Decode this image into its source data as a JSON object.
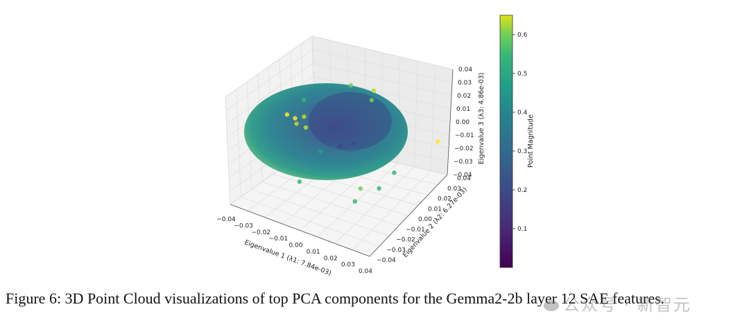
{
  "chart_data": {
    "type": "scatter",
    "projection": "3d",
    "xlabel": "Eigenvalue 1 (λ1: 7.84e-03)",
    "ylabel": "Eigenvalue 2 (λ2: 6.27e-03)",
    "zlabel": "Eigenvalue 3 (λ3: 4.86e-03)",
    "xlim": [
      -0.04,
      0.04
    ],
    "ylim": [
      -0.04,
      0.04
    ],
    "zlim": [
      -0.04,
      0.04
    ],
    "x_ticks": [
      "−0.04",
      "−0.03",
      "−0.02",
      "−0.01",
      "0.00",
      "0.01",
      "0.02",
      "0.03",
      "0.04"
    ],
    "y_ticks": [
      "−0.04",
      "−0.03",
      "−0.02",
      "−0.01",
      "0.00",
      "0.01",
      "0.02",
      "0.03",
      "0.04"
    ],
    "z_ticks": [
      "−0.04",
      "−0.03",
      "−0.02",
      "−0.01",
      "0.00",
      "0.01",
      "0.02",
      "0.03",
      "0.04"
    ],
    "grid": true,
    "colormap": "viridis",
    "colorbar": {
      "label": "Point Magnitude",
      "ticks": [
        "0.1",
        "0.2",
        "0.3",
        "0.4",
        "0.5",
        "0.6"
      ],
      "range": [
        0.0,
        0.65
      ]
    },
    "series": [
      {
        "points": [
          [
            -0.032,
            0.01,
            0.0,
            0.62
          ],
          [
            -0.03,
            0.008,
            -0.002,
            0.58
          ],
          [
            -0.028,
            0.012,
            0.002,
            0.6
          ],
          [
            -0.034,
            0.006,
            0.004,
            0.64
          ],
          [
            -0.026,
            0.01,
            -0.004,
            0.55
          ],
          [
            0.03,
            -0.03,
            0.0,
            0.5
          ],
          [
            0.034,
            0.036,
            0.0,
            0.65
          ],
          [
            0.005,
            0.025,
            0.03,
            0.55
          ],
          [
            -0.005,
            0.02,
            0.032,
            0.52
          ],
          [
            0.01,
            0.015,
            0.031,
            0.5
          ],
          [
            -0.02,
            0.0,
            0.025,
            0.45
          ],
          [
            0.02,
            -0.02,
            -0.02,
            0.4
          ],
          [
            -0.015,
            -0.015,
            -0.025,
            0.42
          ],
          [
            0.0,
            0.0,
            0.0,
            0.15
          ],
          [
            0.005,
            0.005,
            0.002,
            0.18
          ],
          [
            -0.005,
            0.002,
            -0.003,
            0.2
          ],
          [
            0.01,
            -0.005,
            0.005,
            0.22
          ],
          [
            0.022,
            0.0,
            0.0,
            0.35
          ],
          [
            0.028,
            -0.01,
            -0.012,
            0.42
          ],
          [
            -0.018,
            0.01,
            -0.018,
            0.38
          ],
          [
            0.018,
            0.02,
            -0.022,
            0.4
          ]
        ]
      }
    ]
  },
  "caption": {
    "text": "Figure 6: 3D Point Cloud visualizations of top PCA components for the Gemma2-2b layer 12 SAE features."
  },
  "watermark": {
    "text": "公众号 · 新智元"
  }
}
